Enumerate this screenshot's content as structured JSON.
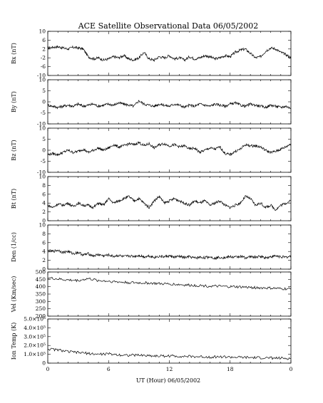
{
  "chart_data": {
    "type": "line",
    "title": "ACE Satellite Observational Data   06/05/2002",
    "xlabel": "UT (Hour)   06/05/2002",
    "x_ticks": [
      "0",
      "6",
      "12",
      "18",
      "0"
    ],
    "xlim": [
      0,
      24
    ],
    "panels": [
      {
        "ylabel": "Bx (nT)",
        "ylim": [
          -10,
          10
        ],
        "y_ticks": [
          {
            "v": 10,
            "t": "10"
          },
          {
            "v": 6,
            "t": "6"
          },
          {
            "v": 2,
            "t": "2"
          },
          {
            "v": -2,
            "t": "-2"
          },
          {
            "v": -6,
            "t": "-6"
          },
          {
            "v": -10,
            "t": "-10"
          }
        ],
        "x": [
          0,
          0.5,
          1,
          1.5,
          2,
          2.5,
          3,
          3.5,
          4,
          4.5,
          5,
          5.5,
          6,
          6.5,
          7,
          7.5,
          8,
          8.5,
          9,
          9.5,
          10,
          10.5,
          11,
          11.5,
          12,
          12.5,
          13,
          13.5,
          14,
          14.5,
          15,
          15.5,
          16,
          16.5,
          17,
          17.5,
          18,
          18.5,
          19,
          19.5,
          20,
          20.5,
          21,
          21.5,
          22,
          22.5,
          23,
          23.5,
          24
        ],
        "values": [
          2.5,
          2.8,
          3,
          2.5,
          2,
          2.8,
          2.5,
          2,
          -1.5,
          -2.5,
          -2,
          -3,
          -2.5,
          -1.5,
          -2,
          -1,
          -2.5,
          -3,
          -2,
          0.5,
          -2.5,
          -3,
          -1.5,
          -2,
          -1,
          -2.5,
          -2,
          -3,
          -1.5,
          -2.5,
          -2,
          -1,
          -1.5,
          -2.5,
          -2,
          -1,
          -1.5,
          0.5,
          1.5,
          2,
          0,
          -2,
          -1.5,
          1,
          2.5,
          2,
          0.5,
          -0.5,
          -2
        ]
      },
      {
        "ylabel": "By (nT)",
        "ylim": [
          -10,
          10
        ],
        "y_ticks": [
          {
            "v": 10,
            "t": "10"
          },
          {
            "v": 5,
            "t": "5"
          },
          {
            "v": 0,
            "t": "0"
          },
          {
            "v": -5,
            "t": "-5"
          },
          {
            "v": -10,
            "t": "-10"
          }
        ],
        "x": [
          0,
          0.5,
          1,
          1.5,
          2,
          2.5,
          3,
          3.5,
          4,
          4.5,
          5,
          5.5,
          6,
          6.5,
          7,
          7.5,
          8,
          8.5,
          9,
          9.5,
          10,
          10.5,
          11,
          11.5,
          12,
          12.5,
          13,
          13.5,
          14,
          14.5,
          15,
          15.5,
          16,
          16.5,
          17,
          17.5,
          18,
          18.5,
          19,
          19.5,
          20,
          20.5,
          21,
          21.5,
          22,
          22.5,
          23,
          23.5,
          24
        ],
        "values": [
          -1.5,
          -2,
          -2.5,
          -2,
          -1.5,
          -2,
          -1,
          -2,
          -1.5,
          -1,
          -2,
          -1.5,
          -1,
          -1.5,
          -0.5,
          -1,
          -1.5,
          -2,
          0.5,
          -1,
          -1.5,
          -2,
          -1,
          -1.5,
          -2,
          -1,
          -1.5,
          -2.5,
          -1.5,
          -2,
          -1,
          -1.5,
          -2,
          -1,
          -1.5,
          -2,
          -1,
          -0.5,
          -1.5,
          -2,
          -1,
          -1.5,
          -2,
          -2.5,
          -1.5,
          -2,
          -2.5,
          -2,
          -3
        ]
      },
      {
        "ylabel": "Bz (nT)",
        "ylim": [
          -10,
          10
        ],
        "y_ticks": [
          {
            "v": 10,
            "t": "10"
          },
          {
            "v": 5,
            "t": "5"
          },
          {
            "v": 0,
            "t": "0"
          },
          {
            "v": -5,
            "t": "-5"
          },
          {
            "v": -10,
            "t": "-10"
          }
        ],
        "x": [
          0,
          0.5,
          1,
          1.5,
          2,
          2.5,
          3,
          3.5,
          4,
          4.5,
          5,
          5.5,
          6,
          6.5,
          7,
          7.5,
          8,
          8.5,
          9,
          9.5,
          10,
          10.5,
          11,
          11.5,
          12,
          12.5,
          13,
          13.5,
          14,
          14.5,
          15,
          15.5,
          16,
          16.5,
          17,
          17.5,
          18,
          18.5,
          19,
          19.5,
          20,
          20.5,
          21,
          21.5,
          22,
          22.5,
          23,
          23.5,
          24
        ],
        "values": [
          -2,
          -1.5,
          -2,
          -1,
          0,
          -1,
          -0.5,
          0.5,
          -1,
          0,
          1,
          0,
          1,
          2.5,
          1.5,
          2,
          3,
          2.5,
          3.5,
          2,
          3,
          1,
          2.5,
          3,
          2,
          2.5,
          1.5,
          2,
          0.5,
          1,
          -1,
          0,
          1,
          0.5,
          1.5,
          -1.5,
          -2,
          -0.5,
          0.5,
          2.5,
          2,
          2,
          1.5,
          0,
          -1,
          -0.5,
          0.5,
          1.5,
          3
        ]
      },
      {
        "ylabel": "Bt (nT)",
        "ylim": [
          0,
          10
        ],
        "y_ticks": [
          {
            "v": 10,
            "t": "10"
          },
          {
            "v": 8,
            "t": "8"
          },
          {
            "v": 6,
            "t": "6"
          },
          {
            "v": 4,
            "t": "4"
          },
          {
            "v": 2,
            "t": "2"
          },
          {
            "v": 0,
            "t": "0"
          }
        ],
        "x": [
          0,
          0.5,
          1,
          1.5,
          2,
          2.5,
          3,
          3.5,
          4,
          4.5,
          5,
          5.5,
          6,
          6.5,
          7,
          7.5,
          8,
          8.5,
          9,
          9.5,
          10,
          10.5,
          11,
          11.5,
          12,
          12.5,
          13,
          13.5,
          14,
          14.5,
          15,
          15.5,
          16,
          16.5,
          17,
          17.5,
          18,
          18.5,
          19,
          19.5,
          20,
          20.5,
          21,
          21.5,
          22,
          22.5,
          23,
          23.5,
          24
        ],
        "values": [
          3.5,
          3,
          3.8,
          3.5,
          4,
          3.2,
          4,
          3.5,
          3.5,
          3,
          4,
          3.5,
          5,
          4,
          4.5,
          5,
          5.5,
          4.5,
          5,
          4,
          3,
          4.5,
          5.5,
          4,
          4.5,
          5,
          4.5,
          4,
          3.5,
          4.5,
          4,
          4.5,
          3.5,
          4,
          4.5,
          3.5,
          3,
          3.5,
          4,
          5.5,
          5,
          3.5,
          4,
          3,
          3.5,
          2.5,
          3.5,
          4,
          4.5
        ]
      },
      {
        "ylabel": "Den (1/cc)",
        "ylim": [
          0,
          10
        ],
        "y_ticks": [
          {
            "v": 10,
            "t": "10"
          },
          {
            "v": 8,
            "t": "8"
          },
          {
            "v": 6,
            "t": "6"
          },
          {
            "v": 4,
            "t": "4"
          },
          {
            "v": 2,
            "t": "2"
          },
          {
            "v": 0,
            "t": "0"
          }
        ],
        "x": [
          0,
          0.5,
          1,
          1.5,
          2,
          2.5,
          3,
          3.5,
          4,
          4.5,
          5,
          5.5,
          6,
          6.5,
          7,
          7.5,
          8,
          8.5,
          9,
          9.5,
          10,
          10.5,
          11,
          11.5,
          12,
          12.5,
          13,
          13.5,
          14,
          14.5,
          15,
          15.5,
          16,
          16.5,
          17,
          17.5,
          18,
          18.5,
          19,
          19.5,
          20,
          20.5,
          21,
          21.5,
          22,
          22.5,
          23,
          23.5,
          24
        ],
        "values": [
          4.2,
          4,
          4.3,
          3.8,
          4,
          3.5,
          3.8,
          3.2,
          3.5,
          3,
          3.3,
          3,
          3.2,
          2.9,
          3.1,
          2.8,
          3,
          2.9,
          3.1,
          2.8,
          3,
          2.7,
          2.9,
          2.8,
          3,
          2.7,
          2.9,
          2.6,
          2.8,
          2.5,
          2.7,
          2.6,
          2.8,
          2.5,
          2.7,
          2.6,
          2.8,
          2.7,
          2.9,
          2.6,
          2.8,
          2.7,
          2.9,
          2.6,
          2.8,
          3,
          2.8,
          2.7,
          2.9
        ]
      },
      {
        "ylabel": "Vel (Km/sec)",
        "ylim": [
          200,
          500
        ],
        "y_ticks": [
          {
            "v": 500,
            "t": "500"
          },
          {
            "v": 450,
            "t": "450"
          },
          {
            "v": 400,
            "t": "400"
          },
          {
            "v": 350,
            "t": "350"
          },
          {
            "v": 300,
            "t": "300"
          },
          {
            "v": 250,
            "t": "250"
          },
          {
            "v": 200,
            "t": "200"
          }
        ],
        "x": [
          0,
          1,
          2,
          3,
          4,
          5,
          6,
          7,
          8,
          9,
          10,
          11,
          12,
          13,
          14,
          15,
          16,
          17,
          18,
          19,
          20,
          21,
          22,
          23,
          24
        ],
        "values": [
          460,
          452,
          445,
          442,
          455,
          442,
          438,
          432,
          428,
          426,
          425,
          420,
          418,
          414,
          410,
          408,
          404,
          402,
          400,
          398,
          395,
          392,
          390,
          386,
          384
        ]
      },
      {
        "ylabel": "Ion Temp (K)",
        "ylim": [
          0,
          5.0
        ],
        "y_ticks": [
          {
            "v": 5.0,
            "t": "5.0×10⁵"
          },
          {
            "v": 4.0,
            "t": "4.0×10⁵"
          },
          {
            "v": 3.0,
            "t": "3.0×10⁵"
          },
          {
            "v": 2.0,
            "t": "2.0×10⁵"
          },
          {
            "v": 1.0,
            "t": "1.0×10⁵"
          },
          {
            "v": 0,
            "t": "0"
          }
        ],
        "x": [
          0,
          1,
          2,
          3,
          4,
          5,
          6,
          7,
          8,
          9,
          10,
          11,
          12,
          13,
          14,
          15,
          16,
          17,
          18,
          19,
          20,
          21,
          22,
          23,
          24
        ],
        "values": [
          1.6,
          1.5,
          1.3,
          1.2,
          1.1,
          1.0,
          1.05,
          0.95,
          0.9,
          0.9,
          0.85,
          0.8,
          0.82,
          0.78,
          0.75,
          0.72,
          0.7,
          0.72,
          0.68,
          0.65,
          0.62,
          0.6,
          0.58,
          0.55,
          0.52
        ]
      }
    ]
  }
}
